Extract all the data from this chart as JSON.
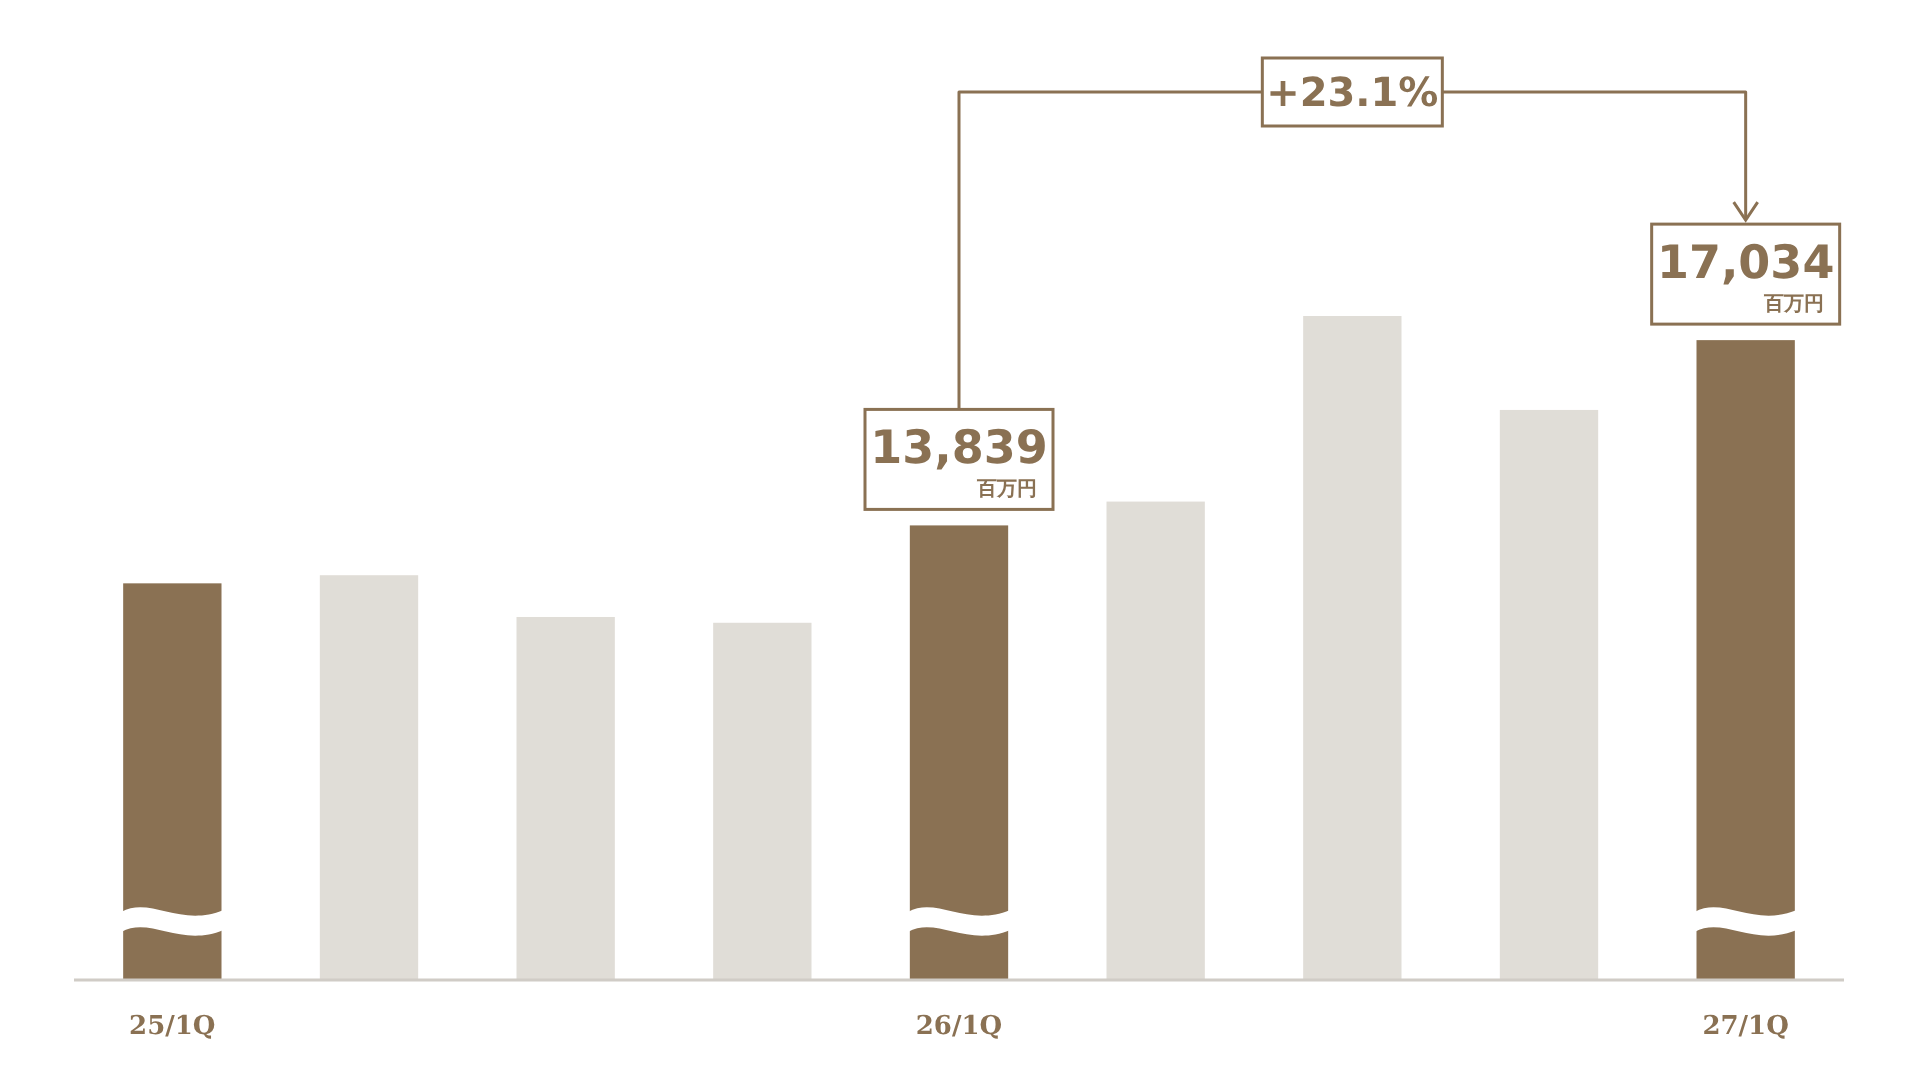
{
  "chart_data": {
    "type": "bar",
    "categories": [
      "25/1Q",
      null,
      null,
      null,
      "26/1Q",
      null,
      null,
      null,
      "27/1Q"
    ],
    "values": [
      12840,
      12980,
      12260,
      12160,
      13839,
      14250,
      17450,
      15830,
      17034
    ],
    "colors": [
      "#8a7153",
      "#e0ddd7",
      "#e0ddd7",
      "#e0ddd7",
      "#8a7153",
      "#e0ddd7",
      "#e0ddd7",
      "#e0ddd7",
      "#8a7153"
    ],
    "value_labels": [
      null,
      null,
      null,
      null,
      "13,839 百万円",
      null,
      null,
      null,
      "17,034 百万円"
    ],
    "ylim": [
      6000,
      17450
    ],
    "tick_labels": "x",
    "annotations": [
      "+23.1%"
    ]
  }
}
